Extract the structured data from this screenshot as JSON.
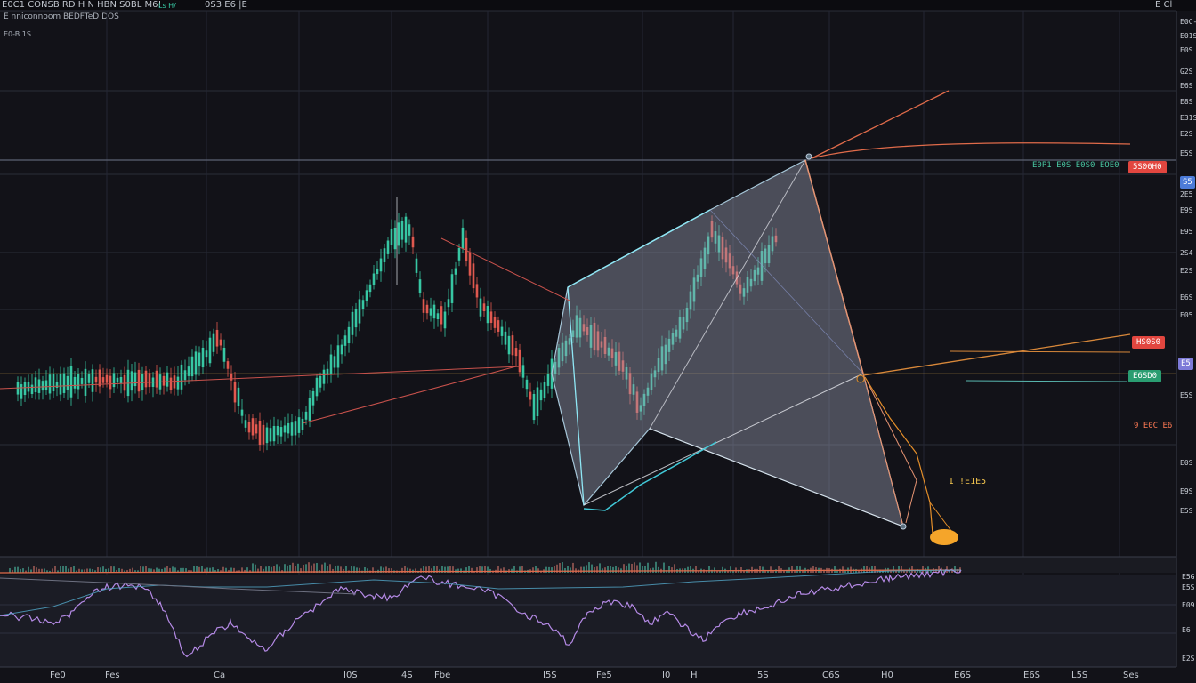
{
  "header": {
    "symbol_text": "E0C1 CONSB  RD  H  N  HBN  S0BL M6!",
    "interval_text": "0S3  E6  |E",
    "pair_text": "Ls H/",
    "right_text": "E  Cl",
    "subtitle": "E nniconnoom  BEDFTeD  DOS",
    "subtitle_small": "E0-B 1S"
  },
  "price_axis": {
    "labels": [
      "E0C-S",
      "E01S",
      "E0S",
      "G2S",
      "E6S",
      "E8S",
      "E31S",
      "E2S",
      "E5S",
      "2E5",
      "E9S",
      "E95",
      "2S4",
      "E2S",
      "E6S",
      "E05",
      "E5S",
      "E0S",
      "E9S",
      "E5S"
    ]
  },
  "indicator_axis": {
    "labels": [
      "E5G",
      "E5S",
      "E09",
      "E6",
      "E2S"
    ]
  },
  "time_axis": {
    "labels": [
      "Fe0",
      "Fes",
      "Ca",
      "I0S",
      "I4S",
      "Fbe",
      "I5S",
      "Fe5",
      "I0",
      "H",
      "I5S",
      "C6S",
      "H0",
      "E6S",
      "E6S",
      "L5S",
      "Ses"
    ]
  },
  "tags": {
    "top_red": "5S00H0",
    "top_green_text": "E0P1 E0S  E0S0  EOE0",
    "mid_red": "HS0S0",
    "mid_purple": "E5",
    "mid_green": "E6SD0",
    "low_orange": "9 E0C E6",
    "annotation_text": "I !E1E5",
    "top_right_label": "S5"
  },
  "colors": {
    "background": "#121218",
    "grid": "#2a2d38",
    "up": "#37c7a3",
    "down": "#e0584f",
    "pattern_fill": "#9aa0b4",
    "pattern_edge": "#8fe7f5",
    "indicator_line": "#b58ae6",
    "accent_orange": "#e58f2a"
  }
}
